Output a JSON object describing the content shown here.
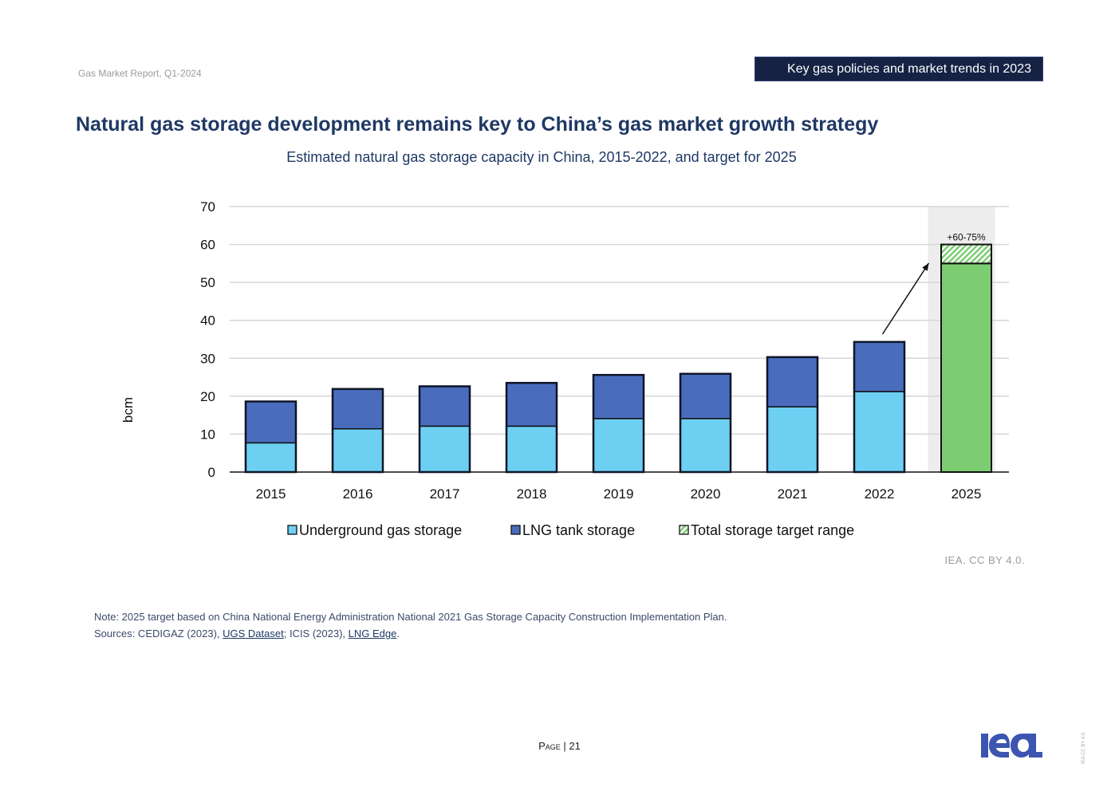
{
  "header": {
    "report_name": "Gas Market Report, Q1-2024",
    "section_label": "Key gas policies and market trends in 2023"
  },
  "page_title": "Natural gas storage development remains key to China’s gas market growth strategy",
  "chart_data": {
    "type": "bar",
    "stacked": true,
    "title": "Estimated natural gas storage capacity in China, 2015-2022, and target for 2025",
    "xlabel": "",
    "ylabel": "bcm",
    "ylim": [
      0,
      70
    ],
    "yticks": [
      0,
      10,
      20,
      30,
      40,
      50,
      60,
      70
    ],
    "grid": true,
    "categories": [
      "2015",
      "2016",
      "2017",
      "2018",
      "2019",
      "2020",
      "2021",
      "2022",
      "2025"
    ],
    "series": [
      {
        "name": "Underground gas storage",
        "color": "#6dd0f2",
        "values": [
          7.7,
          11.4,
          12.1,
          12.1,
          14.1,
          14.1,
          17.2,
          21.2,
          null
        ]
      },
      {
        "name": "LNG tank storage",
        "color": "#4a6cbd",
        "values": [
          10.9,
          10.5,
          10.5,
          11.4,
          11.5,
          11.8,
          13.1,
          13.1,
          null
        ]
      },
      {
        "name": "Total storage target range",
        "color": "#7ccd72",
        "pattern": "hatched",
        "values": [
          null,
          null,
          null,
          null,
          null,
          null,
          null,
          null,
          [
            55,
            60
          ]
        ]
      }
    ],
    "target_base_value": 55,
    "target_base_color": "#7ccd72",
    "highlighted_category": "2025",
    "annotations": [
      {
        "text": "+60-75%",
        "target": "2025"
      },
      {
        "type": "arrow",
        "from": "2022",
        "to": "2025"
      }
    ],
    "legend": {
      "position": "bottom",
      "entries": [
        "Underground gas storage",
        "LNG tank storage",
        "Total storage target range"
      ]
    }
  },
  "license": "IEA. CC BY 4.0.",
  "notes": {
    "note": "Note: 2025 target based on China National Energy Administration National 2021 Gas Storage Capacity Construction Implementation Plan.",
    "sources_prefix": "Sources",
    "sources_text_1": ": CEDIGAZ (2023), ",
    "link_1": "UGS Dataset",
    "sources_text_2": "; ICIS (2023), ",
    "link_2": "LNG Edge",
    "sources_text_3": "."
  },
  "footer": {
    "page_label": "Page",
    "page_number": "21",
    "logo_text": "iea",
    "side_license": "IEA CC BY 4.0."
  },
  "colors": {
    "title": "#1f3864",
    "badge_bg": "#152244",
    "logo": "#3b55b0"
  }
}
